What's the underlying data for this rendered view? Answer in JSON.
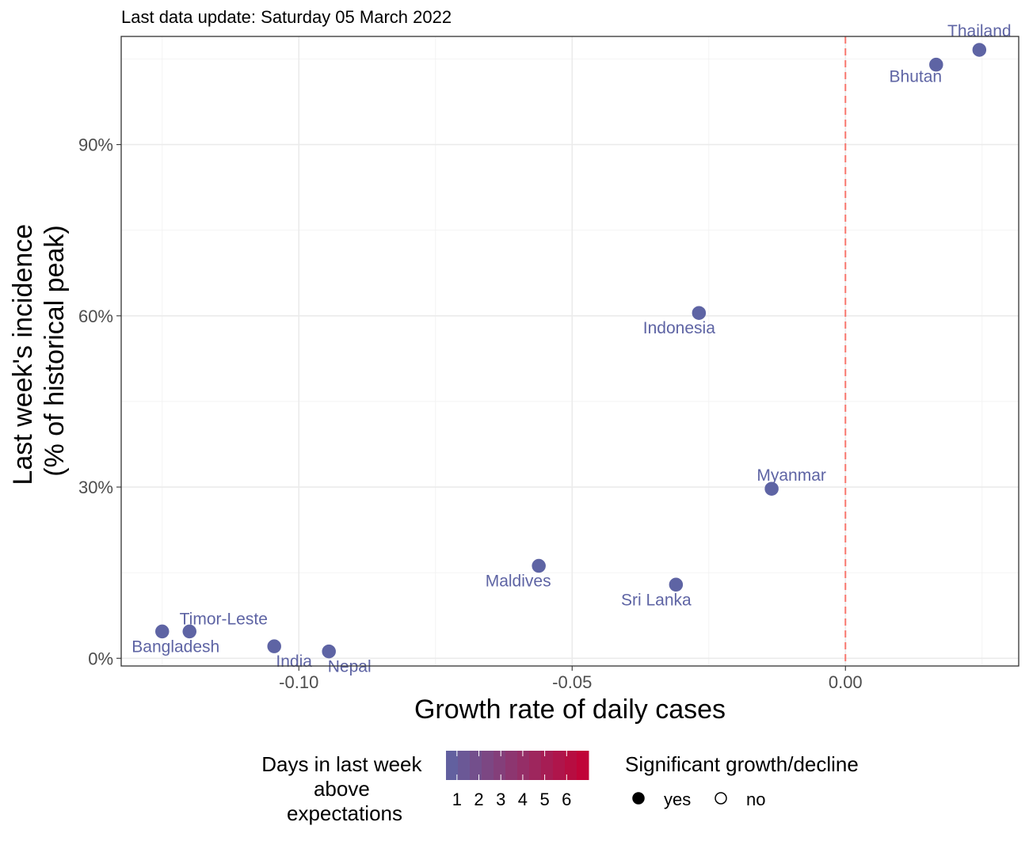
{
  "chart_data": {
    "type": "scatter",
    "subtitle": "Last data update: Saturday 05 March 2022",
    "xlabel": "Growth rate of daily cases",
    "ylabel": [
      "Last week's incidence",
      "(% of historical peak)"
    ],
    "xlim": [
      -0.1325,
      0.0317
    ],
    "ylim": [
      -0.0135,
      1.0895
    ],
    "x_ticks": [
      -0.1,
      -0.05,
      0.0
    ],
    "x_tick_labels": [
      "-0.10",
      "-0.05",
      "0.00"
    ],
    "y_ticks": [
      0,
      0.3,
      0.6,
      0.9
    ],
    "y_tick_labels": [
      "0%",
      "30%",
      "60%",
      "90%"
    ],
    "reference_line": {
      "x": 0.0,
      "style": "dashed",
      "color": "#f8766d"
    },
    "grid": true,
    "legend_position": "bottom",
    "points": [
      {
        "label": "Thailand",
        "x": 0.0245,
        "y": 1.066,
        "days_above": 1,
        "significant": "yes"
      },
      {
        "label": "Bhutan",
        "x": 0.0166,
        "y": 1.04,
        "days_above": 1,
        "significant": "yes"
      },
      {
        "label": "Indonesia",
        "x": -0.0268,
        "y": 0.605,
        "days_above": 1,
        "significant": "yes"
      },
      {
        "label": "Myanmar",
        "x": -0.0135,
        "y": 0.297,
        "days_above": 1,
        "significant": "yes"
      },
      {
        "label": "Maldives",
        "x": -0.0561,
        "y": 0.162,
        "days_above": 1,
        "significant": "yes"
      },
      {
        "label": "Sri Lanka",
        "x": -0.031,
        "y": 0.129,
        "days_above": 1,
        "significant": "yes"
      },
      {
        "label": "Timor-Leste",
        "x": -0.12,
        "y": 0.047,
        "days_above": 1,
        "significant": "yes"
      },
      {
        "label": "Bangladesh",
        "x": -0.125,
        "y": 0.047,
        "days_above": 1,
        "significant": "yes"
      },
      {
        "label": "India",
        "x": -0.1045,
        "y": 0.021,
        "days_above": 1,
        "significant": "yes"
      },
      {
        "label": "Nepal",
        "x": -0.0945,
        "y": 0.012,
        "days_above": 1,
        "significant": "yes"
      }
    ],
    "colors": {
      "point": "#5e64a4",
      "ref_line": "#f8766d"
    },
    "legend": {
      "color_title": [
        "Days in last week",
        "above",
        "expectations"
      ],
      "color_scale": {
        "low": "#5e64a4",
        "high": "#c40033",
        "min": 0.5,
        "max": 7.0
      },
      "color_ticks": [
        1,
        2,
        3,
        4,
        5,
        6
      ],
      "color_tick_labels": [
        "1",
        "2",
        "3",
        "4",
        "5",
        "6"
      ],
      "shape_title": "Significant growth/decline",
      "shape_items": [
        {
          "label": "yes",
          "filled": true
        },
        {
          "label": "no",
          "filled": false
        }
      ]
    }
  }
}
